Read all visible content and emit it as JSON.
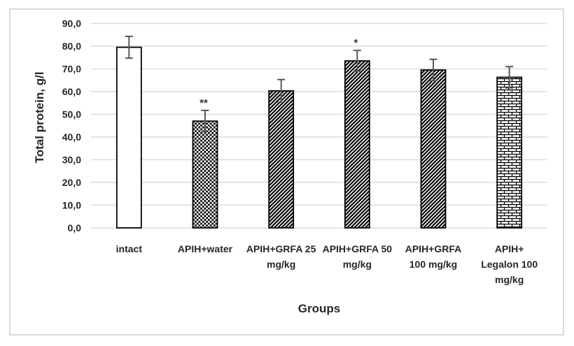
{
  "chart_data": {
    "type": "bar",
    "title": "",
    "xlabel": "Groups",
    "ylabel": "Total protein, g/l",
    "categories": [
      "intact",
      "APIH+water",
      "APIH+GRFA 25\nmg/kg",
      "APIH+GRFA 50\nmg/kg",
      "APIH+GRFA\n100 mg/kg",
      "APIH+\nLegalon 100\nmg/kg"
    ],
    "values": [
      79.5,
      47.0,
      60.3,
      73.5,
      69.5,
      66.3
    ],
    "error_bars": [
      4.8,
      4.7,
      5.0,
      4.6,
      4.7,
      4.7
    ],
    "significance": [
      "",
      "**",
      "",
      "*",
      "",
      ""
    ],
    "bar_patterns": [
      "solid-white",
      "checkerboard",
      "diagonal-hatch",
      "diagonal-hatch",
      "diagonal-hatch",
      "brick"
    ],
    "ylim": [
      0,
      90
    ],
    "ytick_step": 10,
    "ytick_labels": [
      "0,0",
      "10,0",
      "20,0",
      "30,0",
      "40,0",
      "50,0",
      "60,0",
      "70,0",
      "80,0",
      "90,0"
    ],
    "grid": "horizontal-only",
    "legend": "none",
    "colors": {
      "bar_fill": "#ffffff",
      "bar_outline": "#000000",
      "error_bar": "#595959",
      "gridline": "#dcdcdc",
      "text": "#262626",
      "frame_border": "#d9d9d9",
      "background": "#ffffff"
    }
  }
}
